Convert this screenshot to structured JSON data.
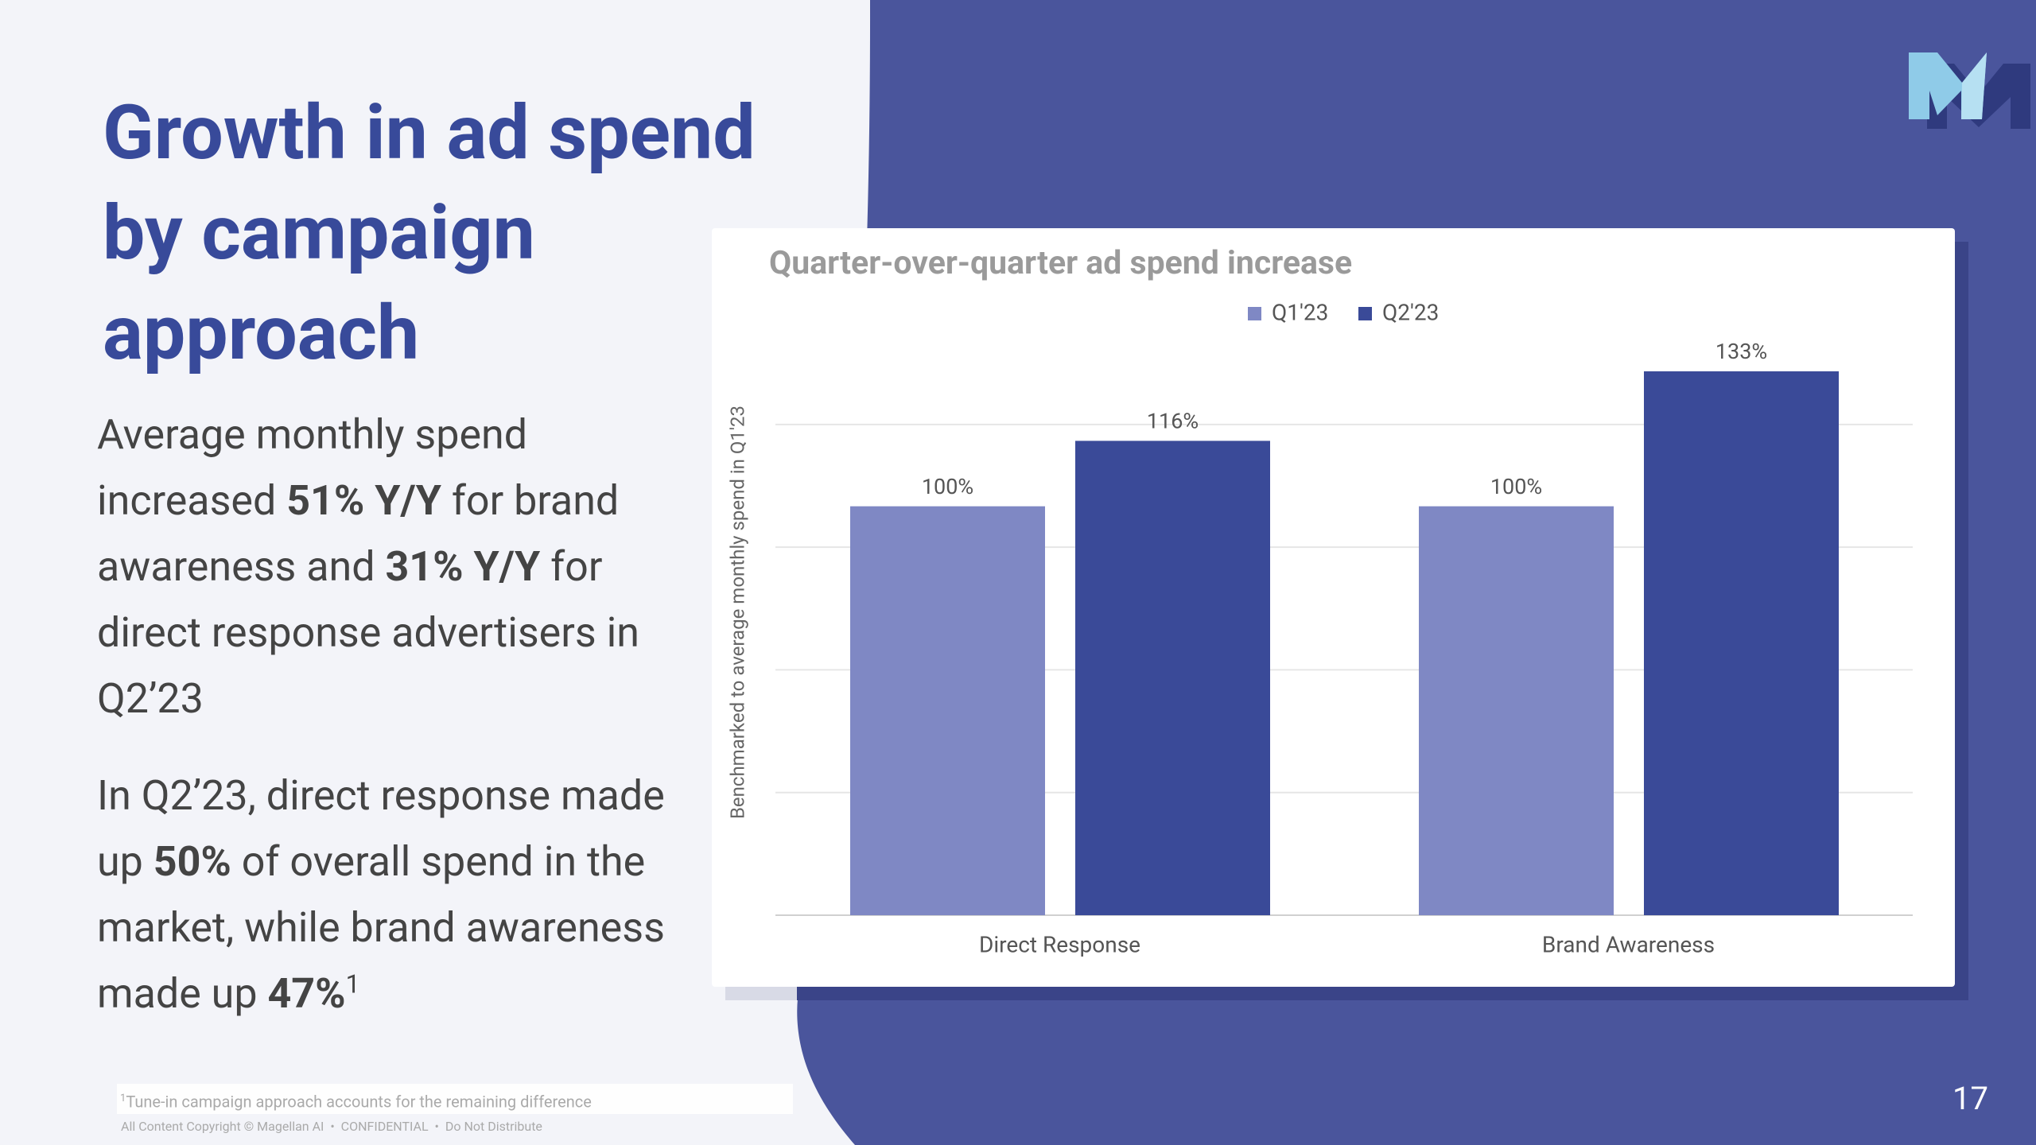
{
  "slide": {
    "title_lines": [
      "Growth in ad spend",
      "by campaign",
      "approach"
    ],
    "paragraphs": [
      [
        {
          "text": "Average monthly spend increased ",
          "bold": false
        },
        {
          "text": "51% Y/Y",
          "bold": true
        },
        {
          "text": " for brand awareness and ",
          "bold": false
        },
        {
          "text": "31% Y/Y",
          "bold": true
        },
        {
          "text": " for direct response advertisers in Q2’23",
          "bold": false
        }
      ],
      [
        {
          "text": "In Q2’23, direct response made up ",
          "bold": false
        },
        {
          "text": "50%",
          "bold": true
        },
        {
          "text": " of overall spend in the market, while brand awareness made up ",
          "bold": false
        },
        {
          "text": "47%",
          "bold": true
        },
        {
          "text": "1",
          "sup": true
        }
      ]
    ],
    "footnote_mark": "1",
    "footnote": "Tune-in campaign approach accounts for the remaining difference",
    "copyright": "All Content Copyright © Magellan AI  •  CONFIDENTIAL  •  Do Not Distribute",
    "page_number": "17"
  },
  "chart_data": {
    "type": "bar",
    "title": "Quarter-over-quarter ad spend increase",
    "ylabel": "Benchmarked to average monthly spend in Q1'23",
    "categories": [
      "Direct Response",
      "Brand Awareness"
    ],
    "series": [
      {
        "name": "Q1'23",
        "color": "#7f88c4",
        "values": [
          100,
          100
        ],
        "value_labels": [
          "100%",
          "100%"
        ]
      },
      {
        "name": "Q2'23",
        "color": "#3a4a98",
        "values": [
          116,
          133
        ],
        "value_labels": [
          "116%",
          "133%"
        ]
      }
    ],
    "ylim": [
      0,
      140
    ],
    "yticks": [
      0,
      30,
      60,
      90,
      120
    ],
    "grid": true
  }
}
